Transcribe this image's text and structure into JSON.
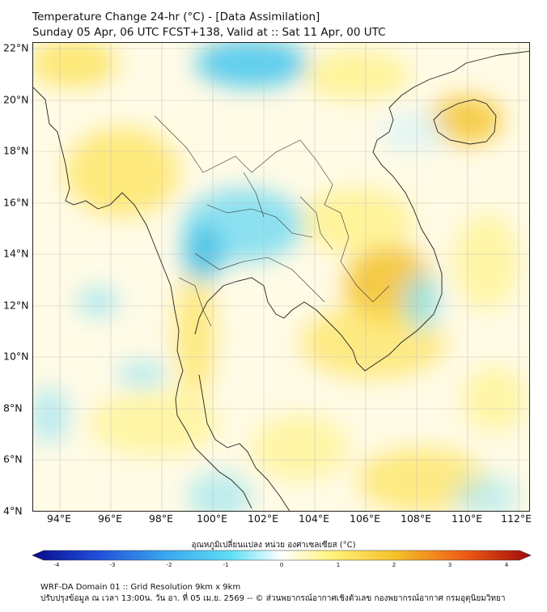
{
  "header": {
    "title": "Temperature Change 24-hr (°C) - [Data Assimilation]",
    "subtitle": "Sunday 05 Apr, 06 UTC FCST+138, Valid at :: Sat 11 Apr, 00 UTC"
  },
  "map": {
    "lat_labels": [
      "22°N",
      "20°N",
      "18°N",
      "16°N",
      "14°N",
      "12°N",
      "10°N",
      "8°N",
      "6°N",
      "4°N"
    ],
    "lon_labels": [
      "94°E",
      "96°E",
      "98°E",
      "100°E",
      "102°E",
      "104°E",
      "106°E",
      "108°E",
      "110°E",
      "112°E"
    ]
  },
  "colorbar": {
    "title": "อุณหภูมิเปลี่ยนแปลง หน่วย องศาเซลเซียส (°C)",
    "ticks": [
      "-4",
      "-3",
      "-2",
      "-1",
      "0",
      "1",
      "2",
      "3",
      "4"
    ],
    "colors": [
      "#0a0a8c",
      "#1f4fd8",
      "#3aa8f0",
      "#5fe0f5",
      "#ffffff",
      "#fff27a",
      "#f5c02a",
      "#ee5a14",
      "#9e0a0a"
    ]
  },
  "footer": {
    "line1": "WRF-DA Domain 01 :: Grid Resolution 9km x 9km",
    "line2": "ปรับปรุงข้อมูล ณ เวลา 13:00น. วัน อา. ที่ 05 เม.ย. 2569 -- © ส่วนพยากรณ์อากาศเชิงตัวเลข กองพยากรณ์อากาศ กรมอุตุนิยมวิทยา"
  }
}
